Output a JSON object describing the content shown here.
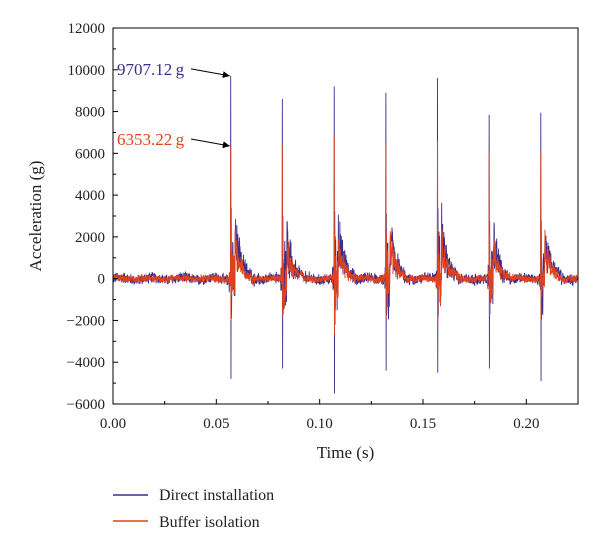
{
  "chart_data": {
    "type": "line",
    "xlabel": "Time (s)",
    "ylabel": "Acceleration (g)",
    "xlim": [
      0.0,
      0.225
    ],
    "ylim": [
      -6000,
      12000
    ],
    "x_ticks": [
      "0.00",
      "0.05",
      "0.10",
      "0.15",
      "0.20"
    ],
    "y_ticks": [
      "−6000",
      "−4000",
      "−2000",
      "0",
      "2000",
      "4000",
      "6000",
      "8000",
      "10000",
      "12000"
    ],
    "grid": false,
    "legend_position": "bottom-left, below plot",
    "series": [
      {
        "name": "Direct installation",
        "color": "#3a2d8f",
        "impacts": [
          {
            "t": 0.057,
            "peak": 9707.12,
            "trough": -4800
          },
          {
            "t": 0.082,
            "peak": 8600,
            "trough": -4300
          },
          {
            "t": 0.107,
            "peak": 9200,
            "trough": -5500
          },
          {
            "t": 0.132,
            "peak": 8900,
            "trough": -4400
          },
          {
            "t": 0.157,
            "peak": 9600,
            "trough": -4500
          },
          {
            "t": 0.182,
            "peak": 7850,
            "trough": -4300
          },
          {
            "t": 0.207,
            "peak": 7950,
            "trough": -4900
          }
        ],
        "noise_amplitude": 250
      },
      {
        "name": "Buffer isolation",
        "color": "#e0421b",
        "impacts": [
          {
            "t": 0.057,
            "peak": 6353.22,
            "trough": -2000
          },
          {
            "t": 0.082,
            "peak": 6400,
            "trough": -1800
          },
          {
            "t": 0.107,
            "peak": 6800,
            "trough": -2700
          },
          {
            "t": 0.132,
            "peak": 6500,
            "trough": -1900
          },
          {
            "t": 0.157,
            "peak": 6600,
            "trough": -2100
          },
          {
            "t": 0.182,
            "peak": 6100,
            "trough": -1800
          },
          {
            "t": 0.207,
            "peak": 6100,
            "trough": -2000
          }
        ],
        "noise_amplitude": 180
      }
    ],
    "annotations": [
      {
        "text": "9707.12 g",
        "x": 0.057,
        "y": 9707.12,
        "color": "#3a2d8f"
      },
      {
        "text": "6353.22 g",
        "x": 0.057,
        "y": 6353.22,
        "color": "#e0421b"
      }
    ]
  }
}
